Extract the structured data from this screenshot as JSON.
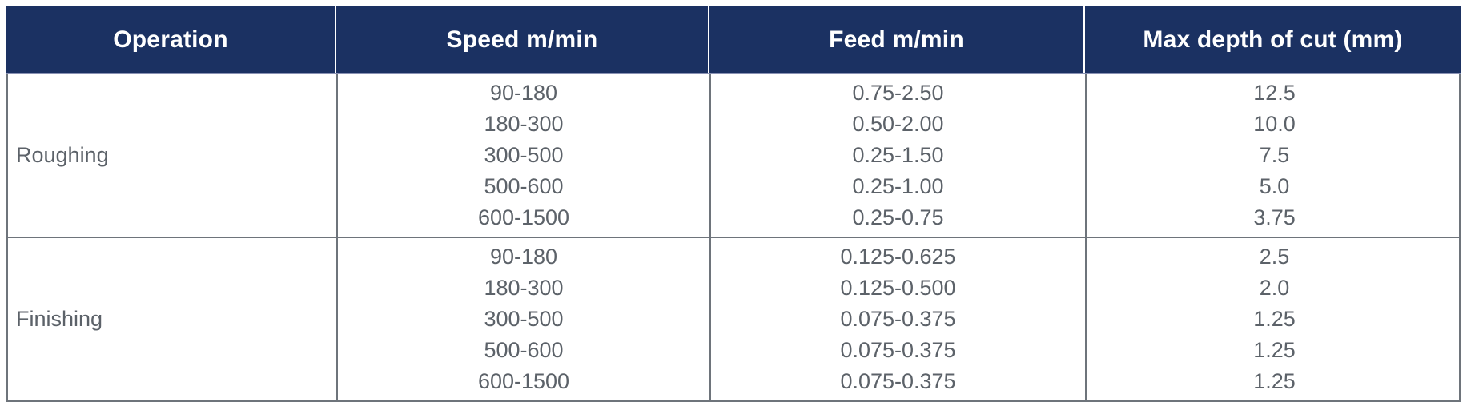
{
  "table": {
    "columns": [
      "Operation",
      "Speed m/min",
      "Feed m/min",
      "Max depth of cut (mm)"
    ],
    "sections": [
      {
        "operation": "Roughing",
        "rows": [
          {
            "speed": "90-180",
            "feed": "0.75-2.50",
            "depth": "12.5"
          },
          {
            "speed": "180-300",
            "feed": "0.50-2.00",
            "depth": "10.0"
          },
          {
            "speed": "300-500",
            "feed": "0.25-1.50",
            "depth": "7.5"
          },
          {
            "speed": "500-600",
            "feed": "0.25-1.00",
            "depth": "5.0"
          },
          {
            "speed": "600-1500",
            "feed": "0.25-0.75",
            "depth": "3.75"
          }
        ]
      },
      {
        "operation": "Finishing",
        "rows": [
          {
            "speed": "90-180",
            "feed": "0.125-0.625",
            "depth": "2.5"
          },
          {
            "speed": "180-300",
            "feed": "0.125-0.500",
            "depth": "2.0"
          },
          {
            "speed": "300-500",
            "feed": "0.075-0.375",
            "depth": "1.25"
          },
          {
            "speed": "500-600",
            "feed": "0.075-0.375",
            "depth": "1.25"
          },
          {
            "speed": "600-1500",
            "feed": "0.075-0.375",
            "depth": "1.25"
          }
        ]
      }
    ]
  },
  "colors": {
    "header_bg": "#1b3162",
    "header_text": "#ffffff",
    "header_divider": "#ffffff",
    "header_bottom_border": "#8a92b4",
    "grid_line": "#6e747b",
    "body_text": "#5c6269",
    "page_bg": "#ffffff"
  }
}
